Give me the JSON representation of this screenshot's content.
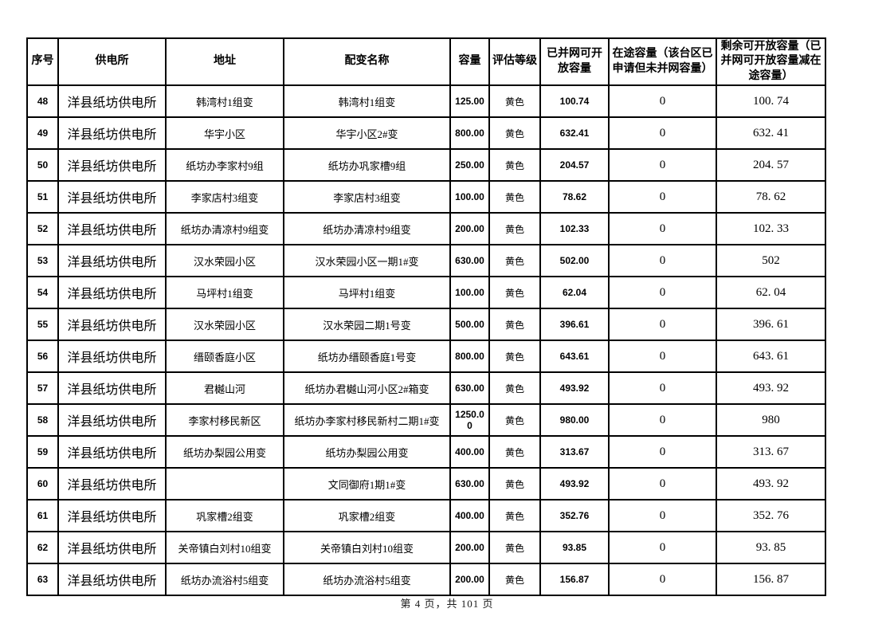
{
  "colors": {
    "background": "#ffffff",
    "border": "#000000",
    "text": "#000000"
  },
  "table": {
    "headers": [
      "序号",
      "供电所",
      "地址",
      "配变名称",
      "容量",
      "评估等级",
      "已并网可开放容量",
      "在途容量（该台区已申请但未并网容量）",
      "剩余可开放容量（已并网可开放容量减在途容量）"
    ],
    "rows": [
      [
        "48",
        "洋县纸坊供电所",
        "韩湾村1组变",
        "韩湾村1组变",
        "125.00",
        "黄色",
        "100.74",
        "0",
        "100. 74"
      ],
      [
        "49",
        "洋县纸坊供电所",
        "华宇小区",
        "华宇小区2#变",
        "800.00",
        "黄色",
        "632.41",
        "0",
        "632. 41"
      ],
      [
        "50",
        "洋县纸坊供电所",
        "纸坊办李家村9组",
        "纸坊办巩家槽9组",
        "250.00",
        "黄色",
        "204.57",
        "0",
        "204. 57"
      ],
      [
        "51",
        "洋县纸坊供电所",
        "李家店村3组变",
        "李家店村3组变",
        "100.00",
        "黄色",
        "78.62",
        "0",
        "78. 62"
      ],
      [
        "52",
        "洋县纸坊供电所",
        "纸坊办清凉村9组变",
        "纸坊办清凉村9组变",
        "200.00",
        "黄色",
        "102.33",
        "0",
        "102. 33"
      ],
      [
        "53",
        "洋县纸坊供电所",
        "汉水荣园小区",
        "汉水荣园小区一期1#变",
        "630.00",
        "黄色",
        "502.00",
        "0",
        "502"
      ],
      [
        "54",
        "洋县纸坊供电所",
        "马坪村1组变",
        "马坪村1组变",
        "100.00",
        "黄色",
        "62.04",
        "0",
        "62. 04"
      ],
      [
        "55",
        "洋县纸坊供电所",
        "汉水荣园小区",
        "汉水荣园二期1号变",
        "500.00",
        "黄色",
        "396.61",
        "0",
        "396. 61"
      ],
      [
        "56",
        "洋县纸坊供电所",
        "缙颐香庭小区",
        "纸坊办缙颐香庭1号变",
        "800.00",
        "黄色",
        "643.61",
        "0",
        "643. 61"
      ],
      [
        "57",
        "洋县纸坊供电所",
        "君樾山河",
        "纸坊办君樾山河小区2#箱变",
        "630.00",
        "黄色",
        "493.92",
        "0",
        "493. 92"
      ],
      [
        "58",
        "洋县纸坊供电所",
        "李家村移民新区",
        "纸坊办李家村移民新村二期1#变",
        "1250.00",
        "黄色",
        "980.00",
        "0",
        "980"
      ],
      [
        "59",
        "洋县纸坊供电所",
        "纸坊办梨园公用变",
        "纸坊办梨园公用变",
        "400.00",
        "黄色",
        "313.67",
        "0",
        "313. 67"
      ],
      [
        "60",
        "洋县纸坊供电所",
        "",
        "文同御府1期1#变",
        "630.00",
        "黄色",
        "493.92",
        "0",
        "493. 92"
      ],
      [
        "61",
        "洋县纸坊供电所",
        "巩家槽2组变",
        "巩家槽2组变",
        "400.00",
        "黄色",
        "352.76",
        "0",
        "352. 76"
      ],
      [
        "62",
        "洋县纸坊供电所",
        "关帝镇白刘村10组变",
        "关帝镇白刘村10组变",
        "200.00",
        "黄色",
        "93.85",
        "0",
        "93. 85"
      ],
      [
        "63",
        "洋县纸坊供电所",
        "纸坊办流浴村5组变",
        "纸坊办流浴村5组变",
        "200.00",
        "黄色",
        "156.87",
        "0",
        "156. 87"
      ]
    ]
  },
  "footer": {
    "page_label": "第 4 页，共 101 页"
  }
}
